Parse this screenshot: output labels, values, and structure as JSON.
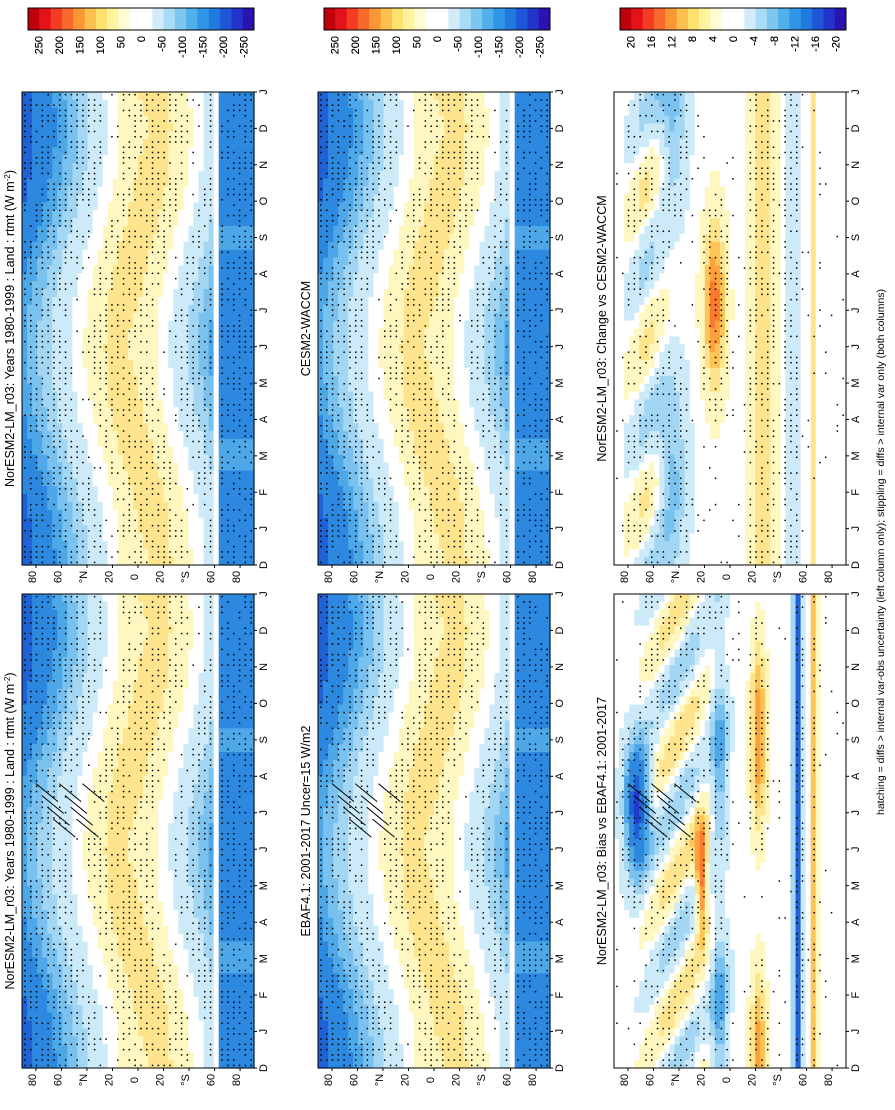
{
  "footnote": "hatching = diffs > internal var-obs uncertainty (left column only); stippling = diffs > internal var only (both columns)",
  "palette": {
    "full": [
      "#c0000b",
      "#e4131a",
      "#f43c22",
      "#f86a2b",
      "#fb9634",
      "#fdbf4d",
      "#fde36e",
      "#fff3a0",
      "#fffbd2",
      "#ffffff",
      "#ffffff",
      "#d3ecfa",
      "#a8dbf6",
      "#7dc6f0",
      "#4fb0ec",
      "#2f95e4",
      "#2178dd",
      "#1d57d8",
      "#2234c9",
      "#2a13b0"
    ],
    "warm": [
      "#fff7c0",
      "#fee48d",
      "#fdc557",
      "#fca13b",
      "#fa7a30",
      "#f04a25",
      "#dc1e1e",
      "#c00010"
    ],
    "cool": [
      "#cdeaf8",
      "#a3d6f3",
      "#79c1ee",
      "#4ea8e8",
      "#2d88e0",
      "#1f62d6",
      "#1f3ccb",
      "#2a18ae"
    ],
    "hatch": "#000000",
    "stipple": "#000000",
    "missing": "#ffffff"
  },
  "chart_data": [
    {
      "type": "heatmap",
      "panel": "top-left",
      "title": "NorESM2-LM_r03: Years 1980-1999 : Land : rtmt (W m",
      "title_sup": "-2",
      "title_end": ")",
      "x_ticks": [
        "D",
        "J",
        "F",
        "M",
        "A",
        "M",
        "J",
        "J",
        "A",
        "S",
        "O",
        "N",
        "D",
        "J"
      ],
      "y_ticks": [
        "80",
        "60",
        "°N",
        "20",
        "0",
        "20",
        "°S",
        "60",
        "80"
      ],
      "colorbar": {
        "labels": [
          "250",
          "200",
          "150",
          "100",
          "50",
          "0",
          "-50",
          "-100",
          "-150",
          "-200",
          "-250"
        ],
        "range": [
          -250,
          250
        ]
      },
      "field": "absolute",
      "hatched": true
    },
    {
      "type": "heatmap",
      "panel": "top-right",
      "title": "NorESM2-LM_r03: Years 1980-1999 : Land : rtmt (W m",
      "title_sup": "-2",
      "title_end": ")",
      "x_ticks": [
        "D",
        "J",
        "F",
        "M",
        "A",
        "M",
        "J",
        "J",
        "A",
        "S",
        "O",
        "N",
        "D",
        "J"
      ],
      "y_ticks": [
        "80",
        "60",
        "°N",
        "20",
        "0",
        "20",
        "°S",
        "60",
        "80"
      ],
      "colorbar": {
        "labels": [
          "250",
          "200",
          "150",
          "100",
          "50",
          "0",
          "-50",
          "-100",
          "-150",
          "-200",
          "-250"
        ],
        "range": [
          -250,
          250
        ]
      },
      "field": "absolute",
      "hatched": false
    },
    {
      "type": "heatmap",
      "panel": "middle-left",
      "title": "EBAF4.1: 2001-2017 Uncer=15 W/m2",
      "x_ticks": [
        "D",
        "J",
        "F",
        "M",
        "A",
        "M",
        "J",
        "J",
        "A",
        "S",
        "O",
        "N",
        "D",
        "J"
      ],
      "y_ticks": [
        "80",
        "60",
        "°N",
        "20",
        "0",
        "20",
        "°S",
        "60",
        "80"
      ],
      "colorbar": {
        "labels": [
          "250",
          "200",
          "150",
          "100",
          "50",
          "0",
          "-50",
          "-100",
          "-150",
          "-200",
          "-250"
        ],
        "range": [
          -250,
          250
        ]
      },
      "field": "absolute",
      "hatched": true
    },
    {
      "type": "heatmap",
      "panel": "middle-right",
      "title": "CESM2-WACCM",
      "x_ticks": [
        "D",
        "J",
        "F",
        "M",
        "A",
        "M",
        "J",
        "J",
        "A",
        "S",
        "O",
        "N",
        "D",
        "J"
      ],
      "y_ticks": [
        "80",
        "60",
        "°N",
        "20",
        "0",
        "20",
        "°S",
        "60",
        "80"
      ],
      "colorbar": {
        "labels": [
          "250",
          "200",
          "150",
          "100",
          "50",
          "0",
          "-50",
          "-100",
          "-150",
          "-200",
          "-250"
        ],
        "range": [
          -250,
          250
        ]
      },
      "field": "absolute",
      "hatched": false
    },
    {
      "type": "heatmap",
      "panel": "bottom-left",
      "title": "NorESM2-LM_r03: Bias vs EBAF4.1: 2001-2017",
      "x_ticks": [
        "D",
        "J",
        "F",
        "M",
        "A",
        "M",
        "J",
        "J",
        "A",
        "S",
        "O",
        "N",
        "D",
        "J"
      ],
      "y_ticks": [
        "80",
        "60",
        "°N",
        "20",
        "0",
        "20",
        "°S",
        "60",
        "80"
      ],
      "colorbar": {
        "labels": [
          "20",
          "16",
          "12",
          "8",
          "4",
          "0",
          "-4",
          "-8",
          "-12",
          "-16",
          "-20"
        ],
        "range": [
          -20,
          20
        ]
      },
      "field": "bias",
      "hatched": true
    },
    {
      "type": "heatmap",
      "panel": "bottom-right",
      "title": "NorESM2-LM_r03: Change vs CESM2-WACCM",
      "x_ticks": [
        "D",
        "J",
        "F",
        "M",
        "A",
        "M",
        "J",
        "J",
        "A",
        "S",
        "O",
        "N",
        "D",
        "J"
      ],
      "y_ticks": [
        "80",
        "60",
        "°N",
        "20",
        "0",
        "20",
        "°S",
        "60",
        "80"
      ],
      "colorbar": {
        "labels": [
          "20",
          "16",
          "12",
          "8",
          "4",
          "0",
          "-4",
          "-8",
          "-12",
          "-16",
          "-20"
        ],
        "range": [
          -20,
          20
        ]
      },
      "field": "change",
      "hatched": false
    }
  ]
}
